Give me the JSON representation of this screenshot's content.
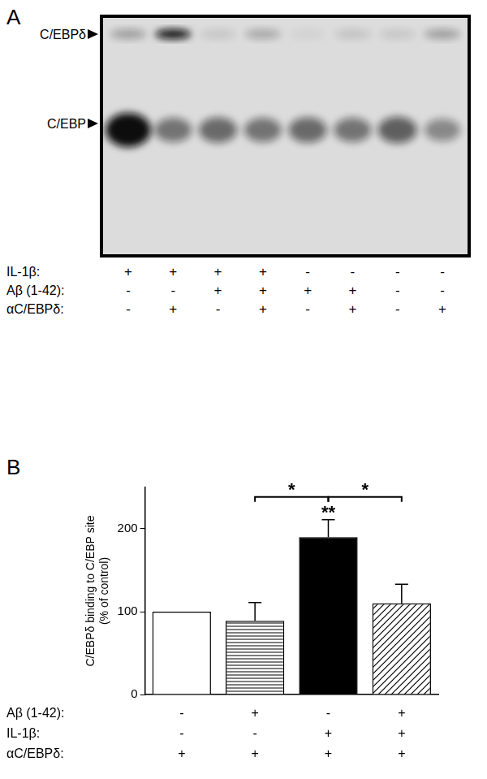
{
  "panel_a": {
    "label": "A",
    "bands": [
      "C/EBPδ",
      "C/EBP"
    ],
    "intensity": {
      "C/EBPδ": [
        0.3,
        1.0,
        0.1,
        0.25,
        0.05,
        0.12,
        0.1,
        0.3
      ],
      "C/EBP": [
        1.0,
        0.5,
        0.55,
        0.5,
        0.55,
        0.5,
        0.6,
        0.4
      ]
    },
    "conditions": [
      {
        "label": "IL-1β:",
        "signs": [
          "+",
          "+",
          "+",
          "+",
          "-",
          "-",
          "-",
          "-"
        ]
      },
      {
        "label": "Aβ (1-42):",
        "signs": [
          "-",
          "-",
          "+",
          "+",
          "+",
          "+",
          "-",
          "-"
        ]
      },
      {
        "label": "αC/EBPδ:",
        "signs": [
          "-",
          "+",
          "-",
          "+",
          "-",
          "+",
          "-",
          "+"
        ]
      }
    ]
  },
  "chart_data": {
    "type": "bar",
    "panel_label": "B",
    "y_label": [
      "C/EBPδ binding to C/EBP site",
      "(% of control)"
    ],
    "categories": [
      null,
      null,
      null,
      null
    ],
    "values": [
      100,
      89,
      190,
      110
    ],
    "errors": [
      0,
      22,
      21,
      23
    ],
    "colors": [
      "#ffffff",
      "#ffffff",
      "#000000",
      "#ffffff"
    ],
    "ylim": [
      0,
      250
    ],
    "yticks": [
      0,
      100,
      200
    ],
    "grid": false,
    "conditions": [
      {
        "label": "Aβ (1-42):",
        "signs": [
          "-",
          "+",
          "-",
          "+"
        ]
      },
      {
        "label": "IL-1β:",
        "signs": [
          "-",
          "-",
          "+",
          "+"
        ]
      },
      {
        "label": "αC/EBPδ:",
        "signs": [
          "+",
          "+",
          "+",
          "+"
        ]
      }
    ],
    "annotations": [
      {
        "text": "*",
        "from": 1,
        "to": 2
      },
      {
        "text": "*",
        "from": 2,
        "to": 3
      },
      {
        "text": "**",
        "at": 2
      }
    ]
  }
}
